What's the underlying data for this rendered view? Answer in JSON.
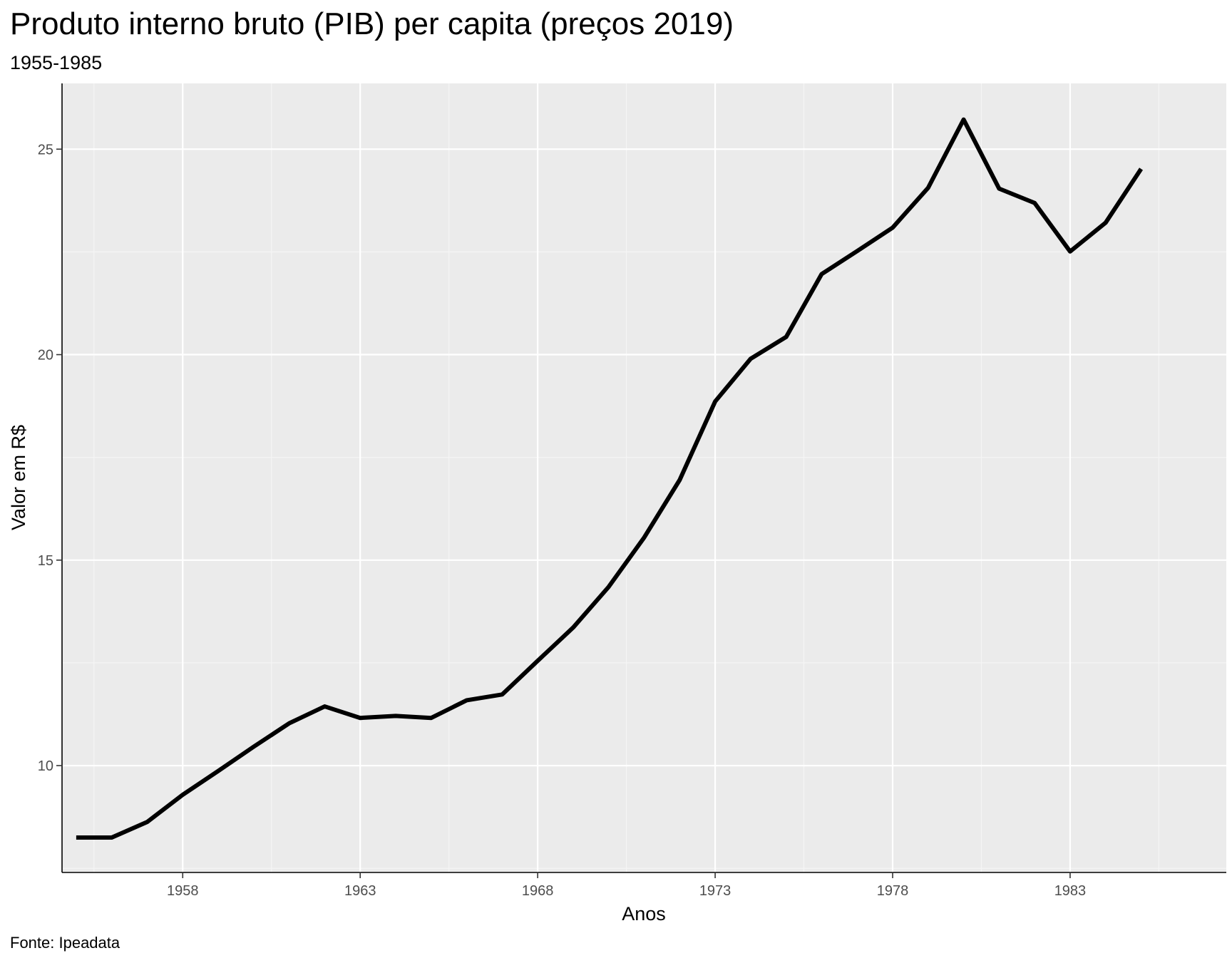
{
  "chart_data": {
    "type": "line",
    "title": "Produto interno bruto (PIB) per capita (preços 2019)",
    "subtitle": "1955-1985",
    "caption": "Fonte: Ipeadata",
    "xlabel": "Anos",
    "ylabel": "Valor em R$",
    "xlim": [
      1954.6,
      1987.4
    ],
    "ylim": [
      7.4,
      26.6
    ],
    "x_ticks": [
      1958,
      1963,
      1968,
      1973,
      1978,
      1983
    ],
    "y_ticks": [
      10,
      15,
      20,
      25
    ],
    "grid": true,
    "legend": "none",
    "colors": {
      "panel_background": "#ebebeb",
      "grid_major": "#ffffff",
      "grid_minor": "#f5f5f5",
      "line": "#000000",
      "tick_label": "#4d4d4d"
    },
    "series": [
      {
        "x": [
          1955,
          1956,
          1957,
          1958,
          1959,
          1960,
          1961,
          1962,
          1963,
          1964,
          1965,
          1966,
          1967,
          1968,
          1969,
          1970,
          1971,
          1972,
          1973,
          1974,
          1975,
          1976,
          1977,
          1978,
          1979,
          1980,
          1981,
          1982,
          1983,
          1984,
          1985
        ],
        "values": [
          8.25,
          8.25,
          8.63,
          9.29,
          9.87,
          10.46,
          11.03,
          11.44,
          11.16,
          11.21,
          11.16,
          11.59,
          11.73,
          12.55,
          13.36,
          14.35,
          15.55,
          16.95,
          18.86,
          19.9,
          20.43,
          21.96,
          22.52,
          23.09,
          24.06,
          25.72,
          24.04,
          23.69,
          22.51,
          23.21,
          24.52
        ]
      }
    ]
  }
}
